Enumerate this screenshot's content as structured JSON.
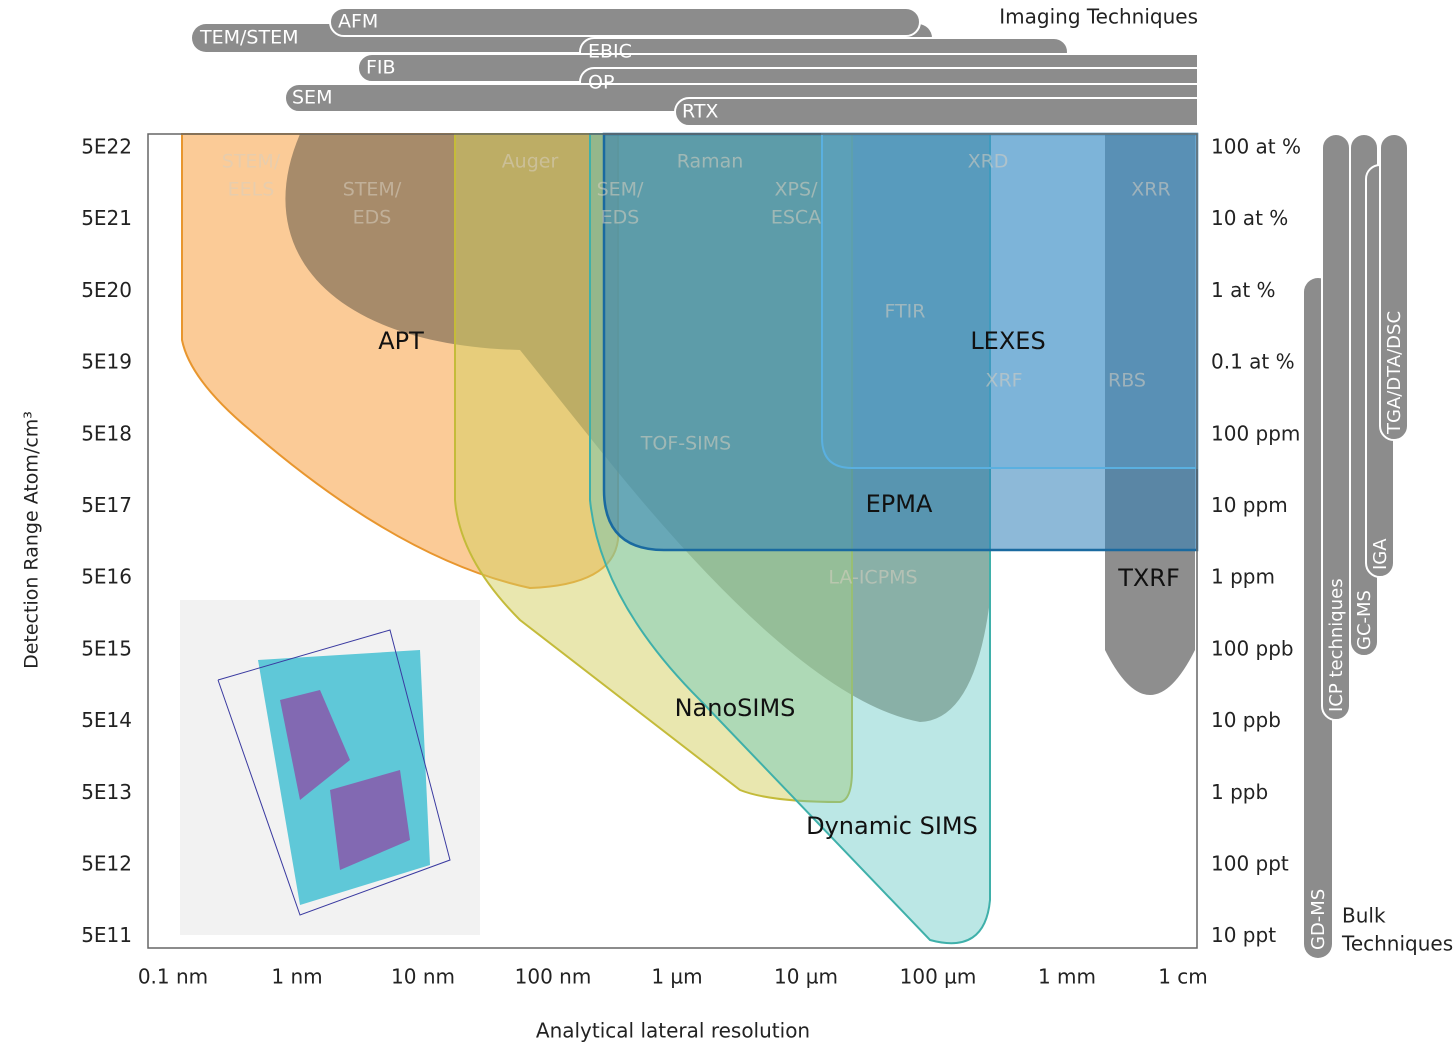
{
  "imaging": {
    "title": "Imaging Techniques",
    "bars": [
      "TEM/STEM",
      "AFM",
      "EBIC",
      "FIB",
      "OP",
      "SEM",
      "RTX"
    ]
  },
  "x_axis": {
    "label": "Analytical lateral resolution",
    "ticks": [
      "0.1 nm",
      "1 nm",
      "10 nm",
      "100 nm",
      "1 µm",
      "10 µm",
      "100 µm",
      "1 mm",
      "1 cm"
    ]
  },
  "y_axis": {
    "label": "Detection Range Atom/cm³",
    "ticks": [
      "5E22",
      "5E21",
      "5E20",
      "5E19",
      "5E18",
      "5E17",
      "5E16",
      "5E15",
      "5E14",
      "5E13",
      "5E12",
      "5E11"
    ]
  },
  "y2_axis": {
    "ticks": [
      "100 at %",
      "10 at %",
      "1 at %",
      "0.1 at %",
      "100 ppm",
      "10 ppm",
      "1 ppm",
      "100 ppb",
      "10 ppb",
      "1 ppb",
      "100 ppt",
      "10 ppt"
    ]
  },
  "regions": [
    "APT",
    "LEXES",
    "EPMA",
    "NanoSIMS",
    "Dynamic SIMS",
    "TXRF"
  ],
  "faint_labels": [
    [
      "STEM/",
      "EELS"
    ],
    [
      "STEM/",
      "EDS"
    ],
    [
      "Auger"
    ],
    [
      "SEM/",
      "EDS"
    ],
    [
      "Raman"
    ],
    [
      "XPS/",
      "ESCA"
    ],
    [
      "XRD"
    ],
    [
      "XRR"
    ],
    [
      "FTIR"
    ],
    [
      "XRF"
    ],
    [
      "RBS"
    ],
    [
      "TOF-SIMS"
    ],
    [
      "LA-ICPMS"
    ]
  ],
  "bulk": {
    "title": [
      "Bulk",
      "Techniques"
    ],
    "bars": [
      "GD-MS",
      "ICP techniques",
      "GC-MS",
      "IGA",
      "TGA/DTA/DSC"
    ]
  }
}
